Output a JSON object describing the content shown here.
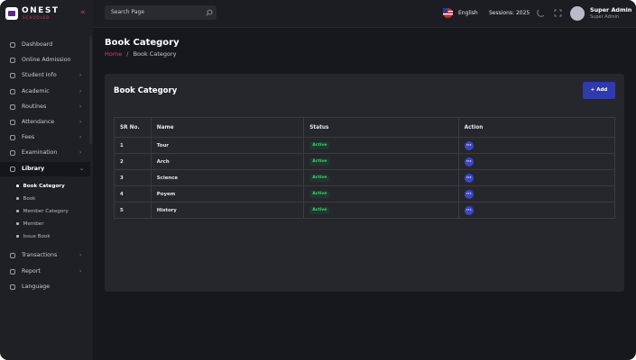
{
  "brand": {
    "name": "ONEST",
    "tagline": "SCHOOLED"
  },
  "search": {
    "placeholder": "Search Page"
  },
  "header": {
    "language": "English",
    "session": "Sessions: 2025",
    "user_name": "Super Admin",
    "user_role": "Super Admin"
  },
  "sidebar": {
    "items": [
      {
        "label": "Dashboard",
        "expandable": false
      },
      {
        "label": "Online Admission",
        "expandable": false
      },
      {
        "label": "Student Info",
        "expandable": true
      },
      {
        "label": "Academic",
        "expandable": true
      },
      {
        "label": "Routines",
        "expandable": true
      },
      {
        "label": "Attendance",
        "expandable": true
      },
      {
        "label": "Fees",
        "expandable": true
      },
      {
        "label": "Examination",
        "expandable": true
      },
      {
        "label": "Library",
        "expandable": true,
        "active": true,
        "children": [
          "Book Category",
          "Book",
          "Member Category",
          "Member",
          "Issue Book"
        ]
      },
      {
        "label": "Transactions",
        "expandable": true
      },
      {
        "label": "Report",
        "expandable": true
      },
      {
        "label": "Language",
        "expandable": false
      }
    ]
  },
  "page": {
    "title": "Book Category",
    "breadcrumb": {
      "home": "Home",
      "separator": "/",
      "current": "Book Category"
    }
  },
  "card": {
    "title": "Book Category",
    "add_button": "+ Add",
    "table": {
      "columns": [
        "SR No.",
        "Name",
        "Status",
        "Action"
      ],
      "rows": [
        [
          1,
          "Tour",
          "Active"
        ],
        [
          2,
          "Arch",
          "Active"
        ],
        [
          3,
          "Science",
          "Active"
        ],
        [
          4,
          "Poyem",
          "Active"
        ],
        [
          5,
          "History",
          "Active"
        ]
      ]
    }
  }
}
